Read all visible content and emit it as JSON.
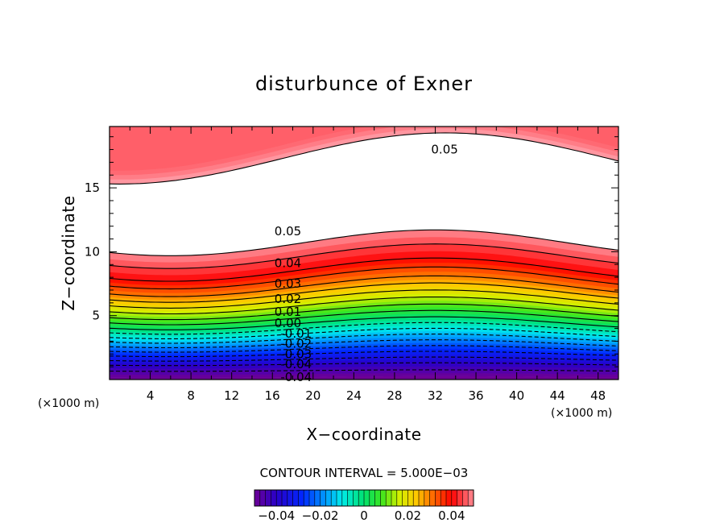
{
  "chart_data": {
    "type": "contour",
    "title": "disturbunce of Exner",
    "xlabel": "X−coordinate",
    "ylabel": "Z−coordinate",
    "x_unit_label": "(×1000 m)",
    "y_unit_label": "(×1000 m)",
    "xlim": [
      0,
      50
    ],
    "ylim": [
      0,
      19.8
    ],
    "x_ticks": [
      4,
      8,
      12,
      16,
      20,
      24,
      28,
      32,
      36,
      40,
      44,
      48
    ],
    "y_ticks": [
      5,
      10,
      15
    ],
    "contour_interval_text": "CONTOUR INTERVAL = 5.000E−03",
    "contour_interval": 0.005,
    "levels": [
      -0.045,
      -0.04,
      -0.035,
      -0.03,
      -0.025,
      -0.02,
      -0.015,
      -0.01,
      -0.005,
      0,
      0.005,
      0.01,
      0.015,
      0.02,
      0.025,
      0.03,
      0.035,
      0.04,
      0.045,
      0.05
    ],
    "contour_labels": [
      {
        "text": "0.05",
        "x": 16.2,
        "z": 11.6
      },
      {
        "text": "0.04",
        "x": 16.2,
        "z": 9.1
      },
      {
        "text": "0.03",
        "x": 16.2,
        "z": 7.5
      },
      {
        "text": "0.02",
        "x": 16.2,
        "z": 6.3
      },
      {
        "text": "0.01",
        "x": 16.2,
        "z": 5.3
      },
      {
        "text": "0.00",
        "x": 16.2,
        "z": 4.4
      },
      {
        "text": "-0.01",
        "x": 16.8,
        "z": 3.6
      },
      {
        "text": "-0.02",
        "x": 16.8,
        "z": 2.8
      },
      {
        "text": "-0.03",
        "x": 16.8,
        "z": 2.0
      },
      {
        "text": "-0.04",
        "x": 16.8,
        "z": 1.2
      },
      {
        "text": "-0.04",
        "x": 16.8,
        "z": 0.2
      },
      {
        "text": "0.05",
        "x": 31.6,
        "z": 18.0
      }
    ],
    "colorbar": {
      "min": -0.05,
      "max": 0.05,
      "tick_labels": [
        "−0.04",
        "−0.02",
        "0",
        "0.02",
        "0.04"
      ],
      "tick_values": [
        -0.04,
        -0.02,
        0,
        0.02,
        0.04
      ]
    }
  }
}
